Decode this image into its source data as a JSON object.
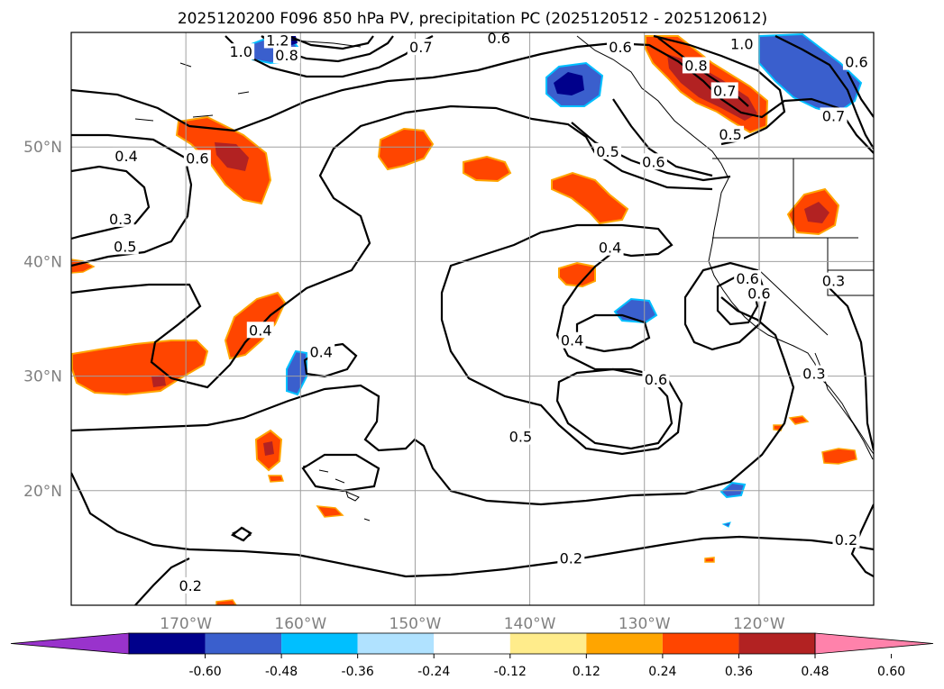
{
  "chart_data": {
    "type": "map-contour",
    "title": "2025120200 F096 850 hPa PV, precipitation PC (2025120512 - 2025120612)",
    "lon_range": [
      -180,
      -110
    ],
    "lat_range": [
      10,
      60
    ],
    "lon_ticks": [
      {
        "value": -170,
        "label": "170°W"
      },
      {
        "value": -160,
        "label": "160°W"
      },
      {
        "value": -150,
        "label": "150°W"
      },
      {
        "value": -140,
        "label": "140°W"
      },
      {
        "value": -130,
        "label": "130°W"
      },
      {
        "value": -120,
        "label": "120°W"
      }
    ],
    "lat_ticks": [
      {
        "value": 50,
        "label": "50°N"
      },
      {
        "value": 40,
        "label": "40°N"
      },
      {
        "value": 30,
        "label": "30°N"
      },
      {
        "value": 20,
        "label": "20°N"
      }
    ],
    "colorbar": {
      "levels": [
        "-0.60",
        "-0.48",
        "-0.36",
        "-0.24",
        "-0.12",
        "0.12",
        "0.24",
        "0.36",
        "0.48",
        "0.60"
      ],
      "colors": [
        "#9933cc",
        "#00008b",
        "#3a5fcd",
        "#00bfff",
        "#b0e2ff",
        "#ffffff",
        "#ffec8b",
        "#ffa500",
        "#ff4500",
        "#b22222",
        "#ff82ab"
      ]
    },
    "contour_labels": [
      {
        "text": "1.2",
        "lon": -162.0,
        "lat": 59.1
      },
      {
        "text": "1.0",
        "lon": -165.2,
        "lat": 58.1
      },
      {
        "text": "0.8",
        "lon": -161.2,
        "lat": 57.8
      },
      {
        "text": "0.7",
        "lon": -149.5,
        "lat": 58.5
      },
      {
        "text": "0.6",
        "lon": -142.7,
        "lat": 59.3
      },
      {
        "text": "0.6",
        "lon": -132.1,
        "lat": 58.5
      },
      {
        "text": "1.0",
        "lon": -121.5,
        "lat": 58.8
      },
      {
        "text": "0.8",
        "lon": -125.5,
        "lat": 56.9
      },
      {
        "text": "0.7",
        "lon": -123.0,
        "lat": 54.7
      },
      {
        "text": "0.5",
        "lon": -122.5,
        "lat": 50.9
      },
      {
        "text": "0.6",
        "lon": -111.5,
        "lat": 57.2
      },
      {
        "text": "0.7",
        "lon": -113.5,
        "lat": 52.5
      },
      {
        "text": "0.5",
        "lon": -133.2,
        "lat": 49.4
      },
      {
        "text": "0.6",
        "lon": -129.2,
        "lat": 48.5
      },
      {
        "text": "0.4",
        "lon": -175.2,
        "lat": 49.0
      },
      {
        "text": "0.6",
        "lon": -169.0,
        "lat": 48.8
      },
      {
        "text": "0.3",
        "lon": -175.7,
        "lat": 43.5
      },
      {
        "text": "0.5",
        "lon": -175.3,
        "lat": 41.1
      },
      {
        "text": "0.4",
        "lon": -133.0,
        "lat": 41.0
      },
      {
        "text": "0.6",
        "lon": -121.0,
        "lat": 38.3
      },
      {
        "text": "0.6",
        "lon": -120.0,
        "lat": 37.0
      },
      {
        "text": "0.3",
        "lon": -113.5,
        "lat": 38.1
      },
      {
        "text": "0.4",
        "lon": -163.5,
        "lat": 33.8
      },
      {
        "text": "0.4",
        "lon": -158.2,
        "lat": 31.9
      },
      {
        "text": "0.4",
        "lon": -136.3,
        "lat": 32.9
      },
      {
        "text": "0.6",
        "lon": -129.0,
        "lat": 29.5
      },
      {
        "text": "0.3",
        "lon": -115.2,
        "lat": 30.0
      },
      {
        "text": "0.5",
        "lon": -140.8,
        "lat": 24.5
      },
      {
        "text": "0.2",
        "lon": -136.4,
        "lat": 13.9
      },
      {
        "text": "0.2",
        "lon": -169.6,
        "lat": 11.5
      },
      {
        "text": "0.2",
        "lon": -112.4,
        "lat": 15.5
      }
    ]
  }
}
